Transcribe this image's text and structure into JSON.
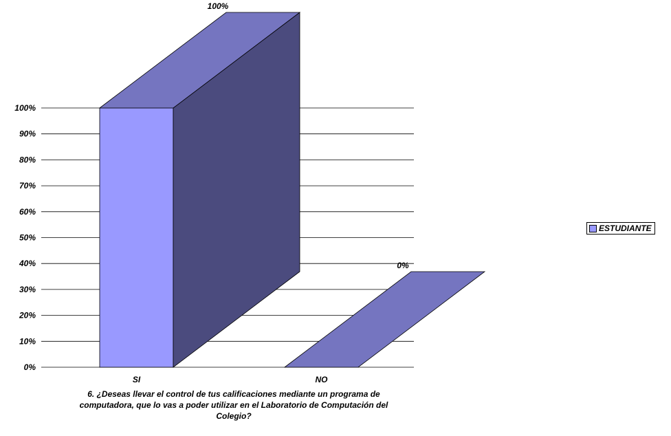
{
  "chart_data": {
    "type": "bar",
    "categories": [
      "SI",
      "NO"
    ],
    "series": [
      {
        "name": "ESTUDIANTE",
        "values": [
          100,
          0
        ]
      }
    ],
    "data_labels": [
      "100%",
      "0%"
    ],
    "yticks": [
      "0%",
      "10%",
      "20%",
      "30%",
      "40%",
      "50%",
      "60%",
      "70%",
      "80%",
      "90%",
      "100%"
    ],
    "ylim": [
      0,
      100
    ],
    "grid": true,
    "three_d": true,
    "legend": "right",
    "title": "6.  ¿Deseas llevar el control de tus calificaciones mediante un programa de computadora, que lo vas a poder utilizar en el Laboratorio de Computación del Colegio?",
    "xlabel": "",
    "ylabel": ""
  },
  "colors": {
    "bar_front": "#9999ff",
    "bar_top": "#7575c0",
    "bar_side": "#4b4b7e",
    "floor": "#7575c0",
    "grid": "#000000",
    "legend_swatch": "#9999ff"
  }
}
